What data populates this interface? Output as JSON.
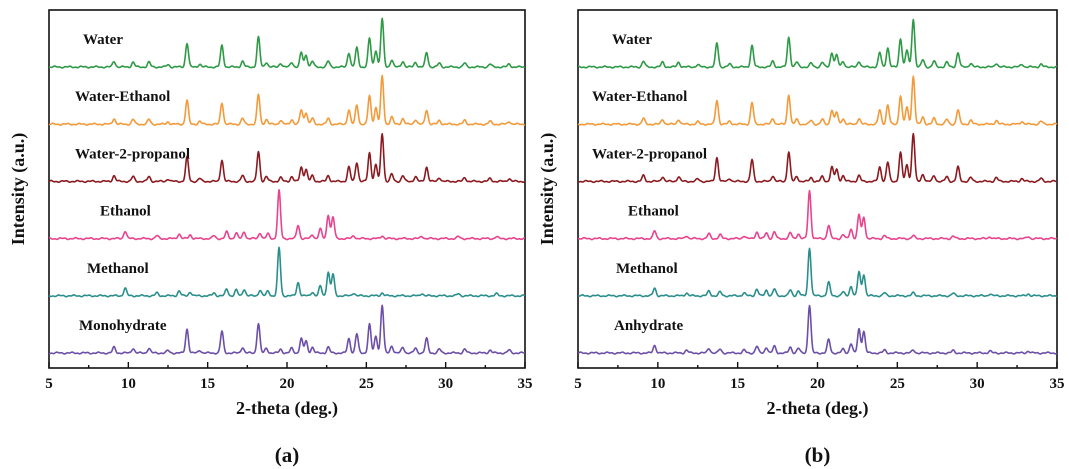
{
  "chart_data": [
    {
      "type": "line",
      "panel_label": "(a)",
      "xlabel": "2-theta (deg.)",
      "ylabel": "Intensity (a.u.)",
      "xlim": [
        5,
        35
      ],
      "xticks": [
        5,
        10,
        15,
        20,
        25,
        30,
        35
      ],
      "yticks": [],
      "grid": false,
      "series": [
        {
          "name": "Water",
          "color": "#2e9a46",
          "pattern": "form1"
        },
        {
          "name": "Water-Ethanol",
          "color": "#f39a3a",
          "pattern": "form1"
        },
        {
          "name": "Water-2-propanol",
          "color": "#8b1a1f",
          "pattern": "form1"
        },
        {
          "name": "Ethanol",
          "color": "#e8438f",
          "pattern": "form2"
        },
        {
          "name": "Methanol",
          "color": "#2a8f8c",
          "pattern": "form2"
        },
        {
          "name": "Monohydrate",
          "color": "#6b4fa8",
          "pattern": "form1"
        }
      ]
    },
    {
      "type": "line",
      "panel_label": "(b)",
      "xlabel": "2-theta (deg.)",
      "ylabel": "Intensity (a.u.)",
      "xlim": [
        5,
        35
      ],
      "xticks": [
        5,
        10,
        15,
        20,
        25,
        30,
        35
      ],
      "yticks": [],
      "grid": false,
      "series": [
        {
          "name": "Water",
          "color": "#2e9a46",
          "pattern": "form1"
        },
        {
          "name": "Water-Ethanol",
          "color": "#f39a3a",
          "pattern": "form1"
        },
        {
          "name": "Water-2-propanol",
          "color": "#8b1a1f",
          "pattern": "form1"
        },
        {
          "name": "Ethanol",
          "color": "#e8438f",
          "pattern": "form2"
        },
        {
          "name": "Methanol",
          "color": "#2a8f8c",
          "pattern": "form2"
        },
        {
          "name": "Anhydrate",
          "color": "#6b4fa8",
          "pattern": "form2"
        }
      ]
    }
  ],
  "peak_patterns": {
    "form1": [
      [
        9.1,
        0.12
      ],
      [
        10.3,
        0.1
      ],
      [
        11.3,
        0.1
      ],
      [
        12.5,
        0.05
      ],
      [
        13.7,
        0.5
      ],
      [
        14.5,
        0.06
      ],
      [
        15.9,
        0.45
      ],
      [
        17.2,
        0.12
      ],
      [
        18.2,
        0.62
      ],
      [
        18.7,
        0.1
      ],
      [
        19.6,
        0.08
      ],
      [
        20.3,
        0.1
      ],
      [
        20.9,
        0.3
      ],
      [
        21.2,
        0.25
      ],
      [
        21.6,
        0.12
      ],
      [
        22.6,
        0.12
      ],
      [
        23.9,
        0.3
      ],
      [
        24.4,
        0.4
      ],
      [
        25.2,
        0.6
      ],
      [
        25.6,
        0.35
      ],
      [
        26.0,
        1.0
      ],
      [
        26.6,
        0.15
      ],
      [
        27.3,
        0.12
      ],
      [
        28.1,
        0.1
      ],
      [
        28.8,
        0.3
      ],
      [
        29.6,
        0.08
      ],
      [
        31.2,
        0.08
      ],
      [
        32.8,
        0.06
      ],
      [
        34.0,
        0.06
      ]
    ],
    "form2": [
      [
        9.8,
        0.16
      ],
      [
        11.8,
        0.06
      ],
      [
        13.2,
        0.1
      ],
      [
        13.9,
        0.08
      ],
      [
        15.4,
        0.06
      ],
      [
        16.2,
        0.14
      ],
      [
        16.8,
        0.12
      ],
      [
        17.3,
        0.14
      ],
      [
        18.3,
        0.12
      ],
      [
        18.8,
        0.1
      ],
      [
        19.5,
        1.0
      ],
      [
        20.7,
        0.28
      ],
      [
        21.6,
        0.08
      ],
      [
        22.1,
        0.2
      ],
      [
        22.6,
        0.5
      ],
      [
        22.9,
        0.45
      ],
      [
        24.2,
        0.06
      ],
      [
        26.0,
        0.06
      ],
      [
        28.5,
        0.05
      ],
      [
        30.8,
        0.04
      ],
      [
        33.2,
        0.04
      ]
    ]
  }
}
